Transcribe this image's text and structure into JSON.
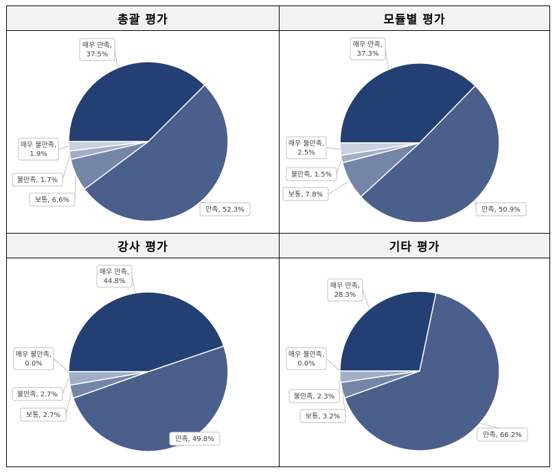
{
  "chart_data": [
    {
      "type": "pie",
      "title": "총괄 평가",
      "categories": [
        "매우 만족",
        "만족",
        "보통",
        "불만족",
        "매우 불만족"
      ],
      "values": [
        37.5,
        52.3,
        6.6,
        1.7,
        1.9
      ],
      "labels": [
        "매우 만족, 37.5%",
        "만족, 52.3%",
        "보통, 6.6%",
        "불만족, 1.7%",
        "매우 불만족, 1.9%"
      ]
    },
    {
      "type": "pie",
      "title": "모듈별 평가",
      "categories": [
        "매우 만족",
        "만족",
        "보통",
        "불만족",
        "매우 불만족"
      ],
      "values": [
        37.3,
        50.9,
        7.8,
        1.5,
        2.5
      ],
      "labels": [
        "매우 만족, 37.3%",
        "만족, 50.9%",
        "보통, 7.8%",
        "불만족, 1.5%",
        "매우 불만족, 2.5%"
      ]
    },
    {
      "type": "pie",
      "title": "강사 평가",
      "categories": [
        "매우 만족",
        "만족",
        "보통",
        "불만족",
        "매우 불만족"
      ],
      "values": [
        44.8,
        49.8,
        2.7,
        2.7,
        0.0
      ],
      "labels": [
        "매우 만족, 44.8%",
        "만족, 49.8%",
        "보통, 2.7%",
        "불만족, 2.7%",
        "매우 불만족, 0.0%"
      ]
    },
    {
      "type": "pie",
      "title": "기타 평가",
      "categories": [
        "매우 만족",
        "만족",
        "보통",
        "불만족",
        "매우 불만족"
      ],
      "values": [
        28.3,
        66.2,
        3.2,
        2.3,
        0.0
      ],
      "labels": [
        "매우 만족, 28.3%",
        "만족, 66.2%",
        "보통, 3.2%",
        "불만족, 2.3%",
        "매우 불만족, 0.0%"
      ]
    }
  ],
  "colors": [
    "#243f73",
    "#4b5f8c",
    "#7585a8",
    "#a2aec8",
    "#c9d0e0"
  ]
}
